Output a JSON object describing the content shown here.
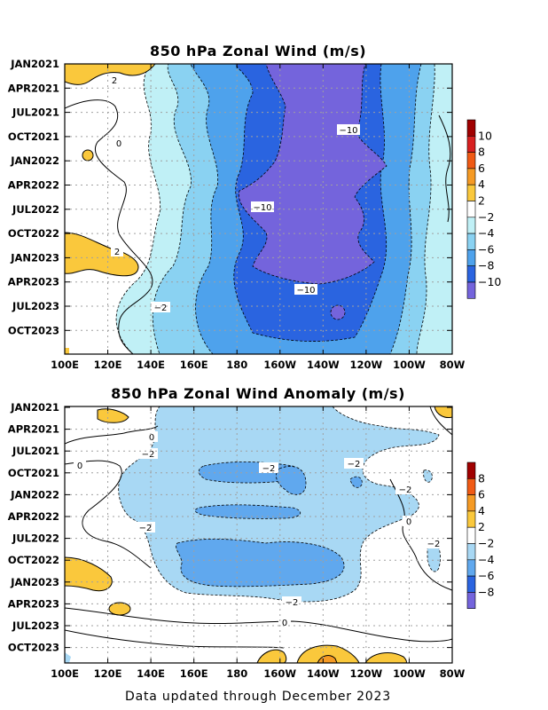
{
  "chart_data": [
    {
      "type": "heatmap",
      "title": "850 hPa Zonal Wind (m/s)",
      "x_tick_labels": [
        "100E",
        "120E",
        "140E",
        "160E",
        "180",
        "160W",
        "140W",
        "120W",
        "100W",
        "80W"
      ],
      "y_tick_labels": [
        "JAN2021",
        "APR2021",
        "JUL2021",
        "OCT2021",
        "JAN2022",
        "APR2022",
        "JUL2022",
        "OCT2022",
        "JAN2023",
        "APR2023",
        "JUL2023",
        "OCT2023"
      ],
      "grid": true,
      "colorbar_labels": [
        "10",
        "8",
        "6",
        "4",
        "2",
        "−2",
        "−4",
        "−6",
        "−8",
        "−10"
      ],
      "colorbar_colors": [
        "#a00000",
        "#d82020",
        "#f05a14",
        "#f59a24",
        "#fac83c",
        "#ffffff",
        "#c0f0f6",
        "#8ad2f2",
        "#4ea2ec",
        "#2a64e0",
        "#7464dc"
      ],
      "contour_labels": [
        "2",
        "−2",
        "0",
        "2",
        "−2",
        "−10",
        "−10",
        "−10"
      ]
    },
    {
      "type": "heatmap",
      "title": "850 hPa Zonal Wind Anomaly (m/s)",
      "x_tick_labels": [
        "100E",
        "120E",
        "140E",
        "160E",
        "180",
        "160W",
        "140W",
        "120W",
        "100W",
        "80W"
      ],
      "y_tick_labels": [
        "JAN2021",
        "APR2021",
        "JUL2021",
        "OCT2021",
        "JAN2022",
        "APR2022",
        "JUL2022",
        "OCT2022",
        "JAN2023",
        "APR2023",
        "JUL2023",
        "OCT2023"
      ],
      "grid": true,
      "colorbar_labels": [
        "8",
        "6",
        "4",
        "2",
        "−2",
        "−4",
        "−6",
        "−8"
      ],
      "colorbar_colors": [
        "#a00000",
        "#f05a14",
        "#f59a24",
        "#fac83c",
        "#ffffff",
        "#a8d8f4",
        "#60a8ee",
        "#2a64e0",
        "#7464dc"
      ],
      "contour_labels": [
        "0",
        "−2",
        "0",
        "−2",
        "−2",
        "−2",
        "−2",
        "0",
        "−2",
        "−2",
        "0"
      ]
    }
  ],
  "footer": "Data updated through December 2023"
}
